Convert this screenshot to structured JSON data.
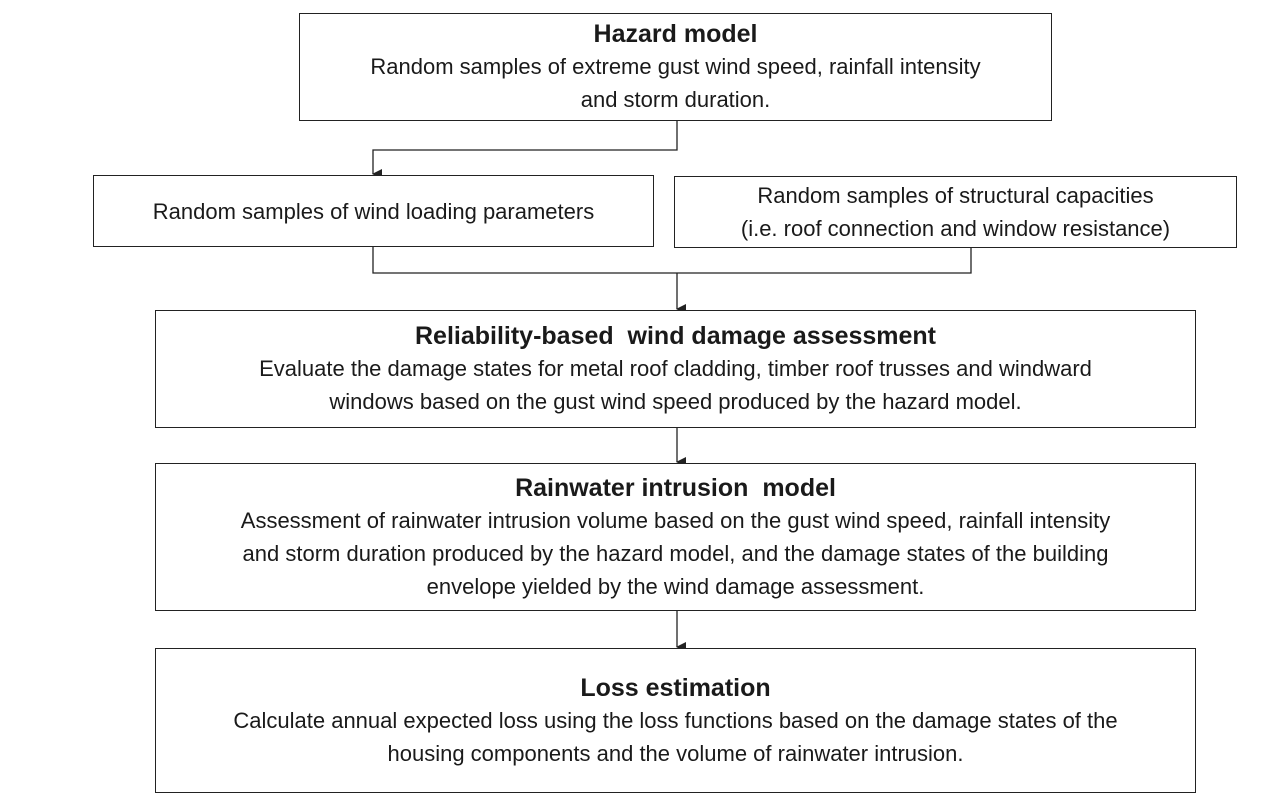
{
  "hazard_model": {
    "title": "Hazard model",
    "lines": [
      "Random samples of extreme gust wind speed, rainfall intensity",
      "and storm duration."
    ]
  },
  "wind_loading": {
    "lines": [
      "Random samples of wind loading parameters"
    ]
  },
  "structural_capacities": {
    "lines": [
      "Random samples of structural capacities",
      "(i.e. roof connection and window resistance)"
    ]
  },
  "reliability_assessment": {
    "title": "Reliability-based  wind damage assessment",
    "lines": [
      "Evaluate the damage states for metal roof cladding, timber roof trusses and windward",
      "windows based on the gust wind speed produced by the hazard model."
    ]
  },
  "rainwater_model": {
    "title": "Rainwater intrusion  model",
    "lines": [
      "Assessment of rainwater intrusion volume based on the gust wind speed, rainfall intensity",
      "and storm duration produced by the hazard model, and the damage states of the building",
      "envelope yielded by the wind damage assessment."
    ]
  },
  "loss_estimation": {
    "title": "Loss estimation",
    "lines": [
      "Calculate annual expected loss using the loss functions based on the damage states of the",
      "housing components and the volume of rainwater intrusion."
    ]
  }
}
